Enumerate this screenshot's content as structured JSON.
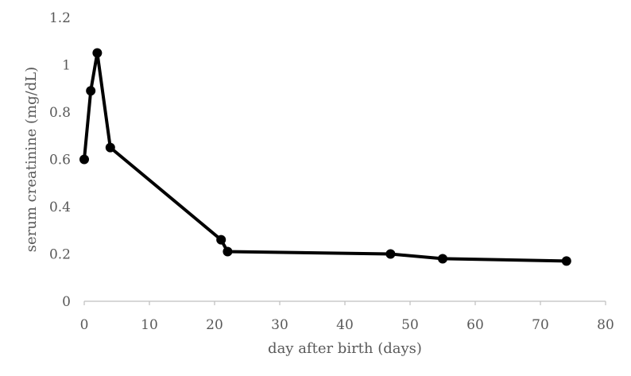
{
  "chart_data": {
    "type": "line",
    "title": "",
    "xlabel": "day after birth (days)",
    "ylabel": "serum creatinine (mg/dL)",
    "xlim": [
      0,
      80
    ],
    "ylim": [
      0,
      1.2
    ],
    "x_ticks": [
      0,
      10,
      20,
      30,
      40,
      50,
      60,
      70,
      80
    ],
    "y_ticks": [
      0,
      0.2,
      0.4,
      0.6,
      0.8,
      1,
      1.2
    ],
    "x_tick_labels": [
      "0",
      "10",
      "20",
      "30",
      "40",
      "50",
      "60",
      "70",
      "80"
    ],
    "y_tick_labels": [
      "0",
      "0.2",
      "0.4",
      "0.6",
      "0.8",
      "1",
      "1.2"
    ],
    "grid": false,
    "legend": "none",
    "series": [
      {
        "x": [
          0,
          1,
          2,
          4,
          21,
          22,
          47,
          55,
          74
        ],
        "y": [
          0.6,
          0.89,
          1.05,
          0.65,
          0.26,
          0.21,
          0.2,
          0.18,
          0.17
        ],
        "color": "#000000",
        "marker": "circle"
      }
    ]
  }
}
